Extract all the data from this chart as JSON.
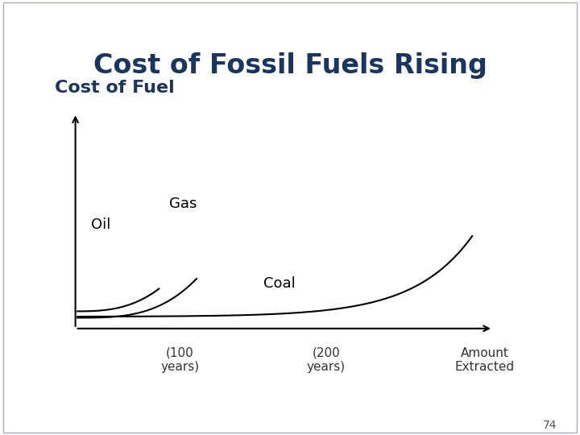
{
  "title": "Cost of Fossil Fuels Rising",
  "ylabel": "Cost of Fuel",
  "xlabel_100": "(100\nyears)",
  "xlabel_200": "(200\nyears)",
  "xlabel_end": "Amount\nExtracted",
  "title_color": "#1a3560",
  "ylabel_color": "#1a3560",
  "bg_color": "#ffffff",
  "line_color": "#000000",
  "oil_label": "Oil",
  "gas_label": "Gas",
  "coal_label": "Coal",
  "page_number": "74",
  "title_fontsize": 24,
  "ylabel_fontsize": 16,
  "label_fontsize": 13,
  "tick_label_fontsize": 11
}
